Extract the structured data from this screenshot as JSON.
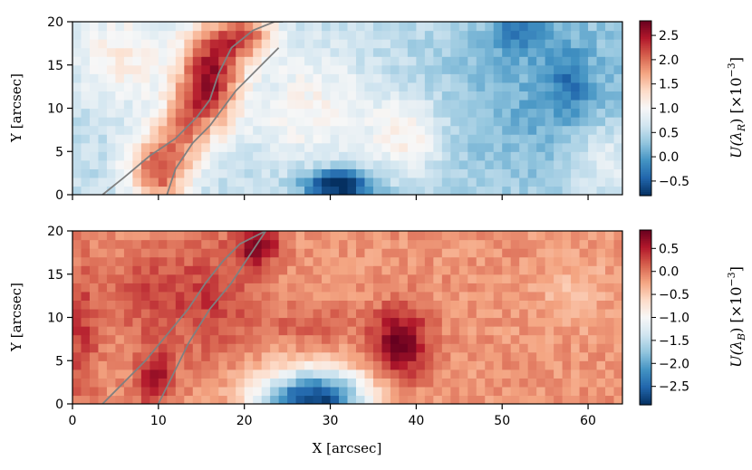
{
  "chart_data": [
    {
      "type": "heatmap",
      "name": "top",
      "xlabel": "",
      "ylabel": "Y [arcsec]",
      "xlim": [
        0,
        64
      ],
      "ylim": [
        0,
        20
      ],
      "xticks": [
        0,
        10,
        20,
        30,
        40,
        50,
        60
      ],
      "xtick_labels": [
        "",
        "",
        "",
        "",
        "",
        "",
        ""
      ],
      "yticks": [
        0,
        5,
        10,
        15,
        20
      ],
      "ytick_labels": [
        "0",
        "5",
        "10",
        "15",
        "20"
      ],
      "colormap": "RdBu_r",
      "clim": [
        -0.8,
        2.8
      ],
      "colorbar_label": "U(λ_R) [×10⁻³]",
      "colorbar_label_main": "U(λ",
      "colorbar_label_sub": "R",
      "colorbar_label_rest": ") [×10",
      "colorbar_label_sup": "−3",
      "colorbar_label_end": "]",
      "colorbar_ticks": [
        -0.5,
        0.0,
        0.5,
        1.0,
        1.5,
        2.0,
        2.5
      ],
      "colorbar_tick_labels": [
        "−0.5",
        "0.0",
        "0.5",
        "1.0",
        "1.5",
        "2.0",
        "2.5"
      ],
      "background": 0.55,
      "features": [
        {
          "x": 16,
          "y": 13.5,
          "sx": 2.5,
          "sy": 4,
          "amp": 2.0
        },
        {
          "x": 10,
          "y": 3,
          "sx": 2.5,
          "sy": 3,
          "amp": 1.6
        },
        {
          "x": 20,
          "y": 18.5,
          "sx": 2.5,
          "sy": 2,
          "amp": 1.4
        },
        {
          "x": 6,
          "y": 16,
          "sx": 4,
          "sy": 4,
          "amp": 0.6
        },
        {
          "x": 13,
          "y": 8,
          "sx": 2,
          "sy": 3,
          "amp": 0.9
        },
        {
          "x": 28,
          "y": 10,
          "sx": 5,
          "sy": 5,
          "amp": 0.5
        },
        {
          "x": 39,
          "y": 7,
          "sx": 3,
          "sy": 3,
          "amp": 0.6
        },
        {
          "x": 31,
          "y": 1,
          "sx": 3,
          "sy": 1.5,
          "amp": -1.5
        },
        {
          "x": 55,
          "y": 12,
          "sx": 9,
          "sy": 9,
          "amp": -0.45
        },
        {
          "x": 52,
          "y": 19,
          "sx": 2,
          "sy": 1.5,
          "amp": -0.6
        },
        {
          "x": 58,
          "y": 13,
          "sx": 1.5,
          "sy": 2.5,
          "amp": -0.5
        },
        {
          "x": 62,
          "y": 4,
          "sx": 3,
          "sy": 3,
          "amp": 0.5
        }
      ],
      "contours": [
        {
          "x": [
            3.5,
            6,
            9,
            12,
            14.5,
            16,
            17,
            18.5,
            21,
            23.5,
            24.5
          ],
          "y": [
            0,
            2,
            4.5,
            6.5,
            9,
            11,
            14,
            17,
            19,
            20,
            20
          ]
        },
        {
          "x": [
            11,
            12,
            14,
            16,
            17.5,
            19,
            21,
            23,
            24
          ],
          "y": [
            0,
            3,
            6,
            8,
            10,
            12,
            14,
            16,
            17
          ]
        }
      ]
    },
    {
      "type": "heatmap",
      "name": "bottom",
      "xlabel": "X [arcsec]",
      "ylabel": "Y [arcsec]",
      "xlim": [
        0,
        64
      ],
      "ylim": [
        0,
        20
      ],
      "xticks": [
        0,
        10,
        20,
        30,
        40,
        50,
        60
      ],
      "xtick_labels": [
        "0",
        "10",
        "20",
        "30",
        "40",
        "50",
        "60"
      ],
      "yticks": [
        0,
        5,
        10,
        15,
        20
      ],
      "ytick_labels": [
        "0",
        "5",
        "10",
        "15",
        "20"
      ],
      "colormap": "RdBu_r",
      "clim": [
        -2.9,
        0.9
      ],
      "colorbar_label": "U(λ_B) [×10⁻³]",
      "colorbar_label_main": "U(λ",
      "colorbar_label_sub": "B",
      "colorbar_label_rest": ") [×10",
      "colorbar_label_sup": "−3",
      "colorbar_label_end": "]",
      "colorbar_ticks": [
        0.5,
        0.0,
        -0.5,
        -1.0,
        -1.5,
        -2.0,
        -2.5
      ],
      "colorbar_tick_labels": [
        "0.5",
        "0.0",
        "−0.5",
        "−1.0",
        "−1.5",
        "−2.0",
        "−2.5"
      ],
      "background": -0.15,
      "features": [
        {
          "x": 38,
          "y": 7,
          "sx": 2.5,
          "sy": 3,
          "amp": 0.95
        },
        {
          "x": 9.5,
          "y": 3,
          "sx": 1.3,
          "sy": 2,
          "amp": 0.9
        },
        {
          "x": 21.5,
          "y": 18.5,
          "sx": 1.8,
          "sy": 1.8,
          "amp": 0.9
        },
        {
          "x": 16,
          "y": 12,
          "sx": 4,
          "sy": 5,
          "amp": 0.45
        },
        {
          "x": 8,
          "y": 13,
          "sx": 3,
          "sy": 4,
          "amp": 0.35
        },
        {
          "x": 28,
          "y": 9,
          "sx": 3,
          "sy": 1.5,
          "amp": 0.35
        },
        {
          "x": 28,
          "y": 0.5,
          "sx": 4.5,
          "sy": 2.5,
          "amp": -2.7
        },
        {
          "x": 1,
          "y": 8,
          "sx": 1.5,
          "sy": 6,
          "amp": 0.45
        },
        {
          "x": 58,
          "y": 13,
          "sx": 3,
          "sy": 3,
          "amp": -0.25
        }
      ],
      "contours": [
        {
          "x": [
            3.5,
            6,
            8.5,
            11,
            13.5,
            15.5,
            17.5,
            19.5,
            22.5
          ],
          "y": [
            0,
            2.5,
            5,
            8,
            11,
            14,
            16.5,
            18.5,
            20
          ]
        },
        {
          "x": [
            10,
            11.5,
            13.5,
            16,
            18.5,
            20.5,
            22.5
          ],
          "y": [
            0,
            3,
            7,
            11,
            14,
            17,
            20
          ]
        }
      ]
    }
  ]
}
